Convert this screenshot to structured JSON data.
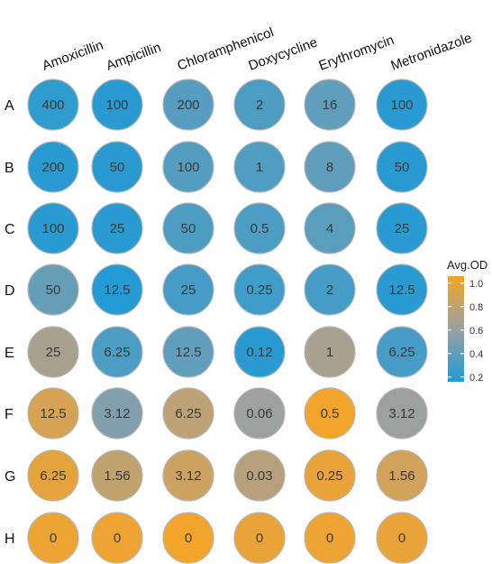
{
  "chart_data": {
    "type": "heatmap",
    "columns": [
      "Amoxicillin",
      "Ampicillin",
      "Chloramphenicol",
      "Doxycycline",
      "Erythromycin",
      "Metronidazole"
    ],
    "rows": [
      "A",
      "B",
      "C",
      "D",
      "E",
      "F",
      "G",
      "H"
    ],
    "cell_labels": [
      [
        "400",
        "100",
        "200",
        "2",
        "16",
        "100"
      ],
      [
        "200",
        "50",
        "100",
        "1",
        "8",
        "50"
      ],
      [
        "100",
        "25",
        "50",
        "0.5",
        "4",
        "25"
      ],
      [
        "50",
        "12.5",
        "25",
        "0.25",
        "2",
        "12.5"
      ],
      [
        "25",
        "6.25",
        "12.5",
        "0.12",
        "1",
        "6.25"
      ],
      [
        "12.5",
        "3.12",
        "6.25",
        "0.06",
        "0.5",
        "3.12"
      ],
      [
        "6.25",
        "1.56",
        "3.12",
        "0.03",
        "0.25",
        "1.56"
      ],
      [
        "0",
        "0",
        "0",
        "0",
        "0",
        "0"
      ]
    ],
    "avg_od": [
      [
        0.22,
        0.2,
        0.36,
        0.33,
        0.4,
        0.2
      ],
      [
        0.2,
        0.2,
        0.35,
        0.34,
        0.4,
        0.2
      ],
      [
        0.2,
        0.2,
        0.33,
        0.32,
        0.38,
        0.2
      ],
      [
        0.42,
        0.18,
        0.3,
        0.28,
        0.3,
        0.2
      ],
      [
        0.68,
        0.32,
        0.4,
        0.2,
        0.68,
        0.3
      ],
      [
        0.9,
        0.52,
        0.78,
        0.62,
        1.05,
        0.62
      ],
      [
        0.98,
        0.8,
        0.85,
        0.75,
        1.0,
        0.88
      ],
      [
        1.02,
        1.02,
        1.05,
        1.0,
        1.02,
        1.0
      ]
    ],
    "legend": {
      "title": "Avg.OD",
      "ticks": [
        "1.0",
        "0.8",
        "0.6",
        "0.4",
        "0.2"
      ],
      "tick_values": [
        1.0,
        0.8,
        0.6,
        0.4,
        0.2
      ],
      "range": [
        0.16,
        1.06
      ],
      "low_color": "#1f9bd7",
      "mid_color": "#9aa0a2",
      "high_color": "#f5a428",
      "placement": "right"
    },
    "marker_outline_color": "#b7b7b7",
    "label_color": "#3a3a3a",
    "grid": false
  }
}
